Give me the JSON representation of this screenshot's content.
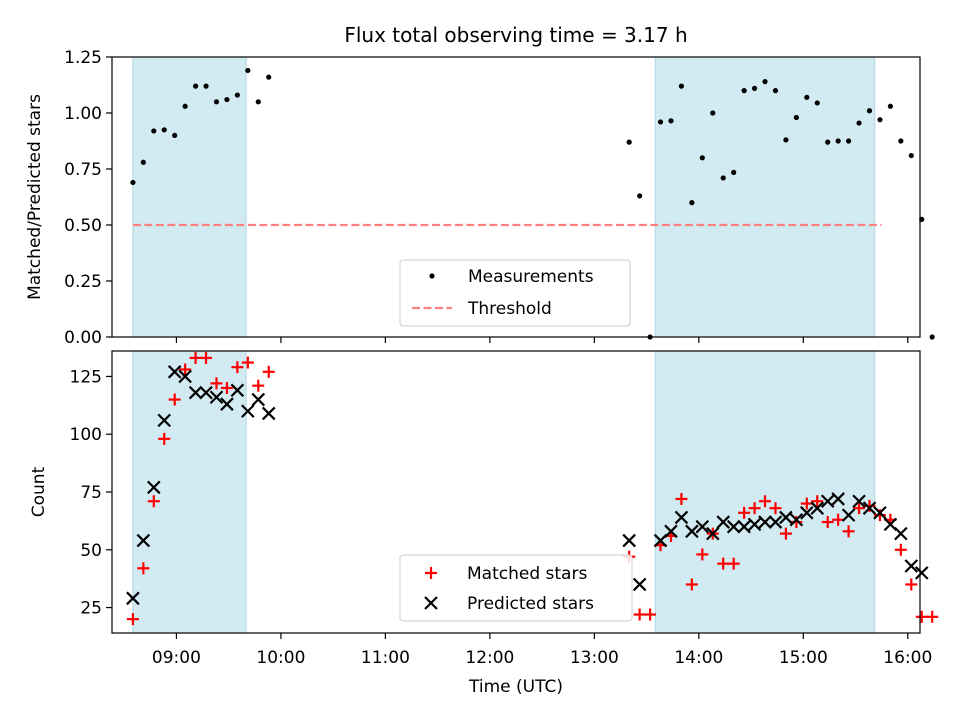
{
  "chart_data": {
    "title": "Flux total observing time = 3.17 h",
    "xlabel": "Time (UTC)",
    "xticks": [
      "09:00",
      "10:00",
      "11:00",
      "12:00",
      "13:00",
      "14:00",
      "15:00",
      "16:00"
    ],
    "xlim": [
      "08:23",
      "16:07"
    ],
    "shaded_intervals": [
      [
        "08:35",
        "09:40"
      ],
      [
        "13:35",
        "15:41"
      ]
    ],
    "colors": {
      "shade": "#add8e6",
      "measurement": "#000000",
      "threshold": "#ff8080",
      "matched": "#ff0000",
      "predicted": "#000000"
    },
    "panels": [
      {
        "type": "scatter",
        "ylabel": "Matched/Predicted stars",
        "ylim": [
          0,
          1.25
        ],
        "yticks": [
          "0.00",
          "0.25",
          "0.50",
          "0.75",
          "1.00",
          "1.25"
        ],
        "grid": false,
        "legend_location": "lower center",
        "threshold": {
          "name": "Threshold",
          "value": 0.5,
          "x_range": [
            "08:35",
            "15:45"
          ]
        },
        "series": [
          {
            "name": "Measurements",
            "marker": "dot",
            "points": [
              [
                "08:35",
                0.69
              ],
              [
                "08:41",
                0.78
              ],
              [
                "08:47",
                0.92
              ],
              [
                "08:53",
                0.925
              ],
              [
                "08:59",
                0.9
              ],
              [
                "09:05",
                1.03
              ],
              [
                "09:11",
                1.12
              ],
              [
                "09:17",
                1.12
              ],
              [
                "09:23",
                1.05
              ],
              [
                "09:29",
                1.06
              ],
              [
                "09:35",
                1.08
              ],
              [
                "09:41",
                1.19
              ],
              [
                "09:47",
                1.05
              ],
              [
                "09:53",
                1.16
              ],
              [
                "13:20",
                0.87
              ],
              [
                "13:26",
                0.63
              ],
              [
                "13:32",
                0.0
              ],
              [
                "13:38",
                0.96
              ],
              [
                "13:44",
                0.965
              ],
              [
                "13:50",
                1.12
              ],
              [
                "13:56",
                0.6
              ],
              [
                "14:02",
                0.8
              ],
              [
                "14:08",
                1.0
              ],
              [
                "14:14",
                0.71
              ],
              [
                "14:20",
                0.735
              ],
              [
                "14:26",
                1.1
              ],
              [
                "14:32",
                1.11
              ],
              [
                "14:38",
                1.14
              ],
              [
                "14:44",
                1.1
              ],
              [
                "14:50",
                0.88
              ],
              [
                "14:56",
                0.98
              ],
              [
                "15:02",
                1.07
              ],
              [
                "15:08",
                1.045
              ],
              [
                "15:14",
                0.87
              ],
              [
                "15:20",
                0.875
              ],
              [
                "15:26",
                0.875
              ],
              [
                "15:32",
                0.955
              ],
              [
                "15:38",
                1.01
              ],
              [
                "15:44",
                0.97
              ],
              [
                "15:50",
                1.03
              ],
              [
                "15:56",
                0.875
              ],
              [
                "16:02",
                0.81
              ],
              [
                "16:08",
                0.525
              ],
              [
                "16:14",
                0.0
              ]
            ]
          }
        ]
      },
      {
        "type": "scatter",
        "ylabel": "Count",
        "ylim": [
          14,
          136
        ],
        "yticks": [
          "25",
          "50",
          "75",
          "100",
          "125"
        ],
        "grid": false,
        "legend_location": "lower center",
        "series": [
          {
            "name": "Matched stars",
            "marker": "plus",
            "points": [
              [
                "08:35",
                20
              ],
              [
                "08:41",
                42
              ],
              [
                "08:47",
                71
              ],
              [
                "08:53",
                98
              ],
              [
                "08:59",
                115
              ],
              [
                "09:05",
                128
              ],
              [
                "09:11",
                133
              ],
              [
                "09:17",
                133
              ],
              [
                "09:23",
                122
              ],
              [
                "09:29",
                120
              ],
              [
                "09:35",
                129
              ],
              [
                "09:41",
                131
              ],
              [
                "09:47",
                121
              ],
              [
                "09:53",
                127
              ],
              [
                "13:20",
                47
              ],
              [
                "13:26",
                22
              ],
              [
                "13:32",
                22
              ],
              [
                "13:38",
                52
              ],
              [
                "13:44",
                56
              ],
              [
                "13:50",
                72
              ],
              [
                "13:56",
                35
              ],
              [
                "14:02",
                48
              ],
              [
                "14:08",
                57
              ],
              [
                "14:14",
                44
              ],
              [
                "14:20",
                44
              ],
              [
                "14:26",
                66
              ],
              [
                "14:32",
                68
              ],
              [
                "14:38",
                71
              ],
              [
                "14:44",
                68
              ],
              [
                "14:50",
                57
              ],
              [
                "14:56",
                62
              ],
              [
                "15:02",
                70
              ],
              [
                "15:08",
                71
              ],
              [
                "15:14",
                62
              ],
              [
                "15:20",
                63
              ],
              [
                "15:26",
                58
              ],
              [
                "15:32",
                68
              ],
              [
                "15:38",
                69
              ],
              [
                "15:44",
                65
              ],
              [
                "15:50",
                63
              ],
              [
                "15:56",
                50
              ],
              [
                "16:02",
                35
              ],
              [
                "16:08",
                21
              ],
              [
                "16:14",
                21
              ]
            ]
          },
          {
            "name": "Predicted stars",
            "marker": "x",
            "points": [
              [
                "08:35",
                29
              ],
              [
                "08:41",
                54
              ],
              [
                "08:47",
                77
              ],
              [
                "08:53",
                106
              ],
              [
                "08:59",
                127
              ],
              [
                "09:05",
                125
              ],
              [
                "09:11",
                118
              ],
              [
                "09:17",
                118
              ],
              [
                "09:23",
                116
              ],
              [
                "09:29",
                113
              ],
              [
                "09:35",
                119
              ],
              [
                "09:41",
                110
              ],
              [
                "09:47",
                115
              ],
              [
                "09:53",
                109
              ],
              [
                "13:20",
                54
              ],
              [
                "13:26",
                35
              ],
              [
                "13:38",
                54
              ],
              [
                "13:44",
                58
              ],
              [
                "13:50",
                64
              ],
              [
                "13:56",
                58
              ],
              [
                "14:02",
                60
              ],
              [
                "14:08",
                57
              ],
              [
                "14:14",
                62
              ],
              [
                "14:20",
                60
              ],
              [
                "14:26",
                60
              ],
              [
                "14:32",
                61
              ],
              [
                "14:38",
                62
              ],
              [
                "14:44",
                62
              ],
              [
                "14:50",
                64
              ],
              [
                "14:56",
                63
              ],
              [
                "15:02",
                66
              ],
              [
                "15:08",
                68
              ],
              [
                "15:14",
                71
              ],
              [
                "15:20",
                72
              ],
              [
                "15:26",
                65
              ],
              [
                "15:32",
                71
              ],
              [
                "15:38",
                68
              ],
              [
                "15:44",
                66
              ],
              [
                "15:50",
                61
              ],
              [
                "15:56",
                57
              ],
              [
                "16:02",
                43
              ],
              [
                "16:08",
                40
              ]
            ]
          }
        ]
      }
    ]
  }
}
